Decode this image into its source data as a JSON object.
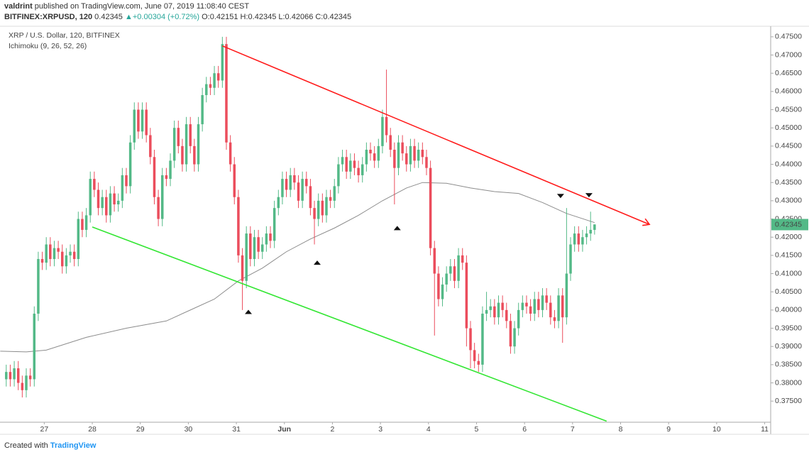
{
  "header": {
    "author": "valdrint",
    "published": "published on TradingView.com, June 07, 2019 11:08:40 CEST",
    "symbol": "BITFINEX:XRPUSD, 120",
    "last": "0.42345",
    "change": "▲+0.00304 (+0.72%)",
    "ohlc": "O:0.42151 H:0.42345 L:0.42066 C:0.42345"
  },
  "chart_data": {
    "type": "candlestick",
    "title": "XRP / U.S. Dollar, 120, BITFINEX",
    "indicator": "Ichimoku (9, 26, 52, 26)",
    "up_color": "#53b987",
    "down_color": "#eb4d5c",
    "open": [
      0.381,
      0.383,
      0.381,
      0.384,
      0.38,
      0.378,
      0.382,
      0.381,
      0.399,
      0.414,
      0.413,
      0.418,
      0.414,
      0.417,
      0.416,
      0.412,
      0.415,
      0.416,
      0.414,
      0.425,
      0.422,
      0.426,
      0.436,
      0.433,
      0.428,
      0.431,
      0.426,
      0.432,
      0.429,
      0.43,
      0.437,
      0.434,
      0.446,
      0.455,
      0.449,
      0.455,
      0.448,
      0.442,
      0.431,
      0.425,
      0.437,
      0.436,
      0.441,
      0.45,
      0.445,
      0.44,
      0.451,
      0.445,
      0.44,
      0.451,
      0.459,
      0.462,
      0.461,
      0.465,
      0.463,
      0.473,
      0.446,
      0.44,
      0.431,
      0.415,
      0.408,
      0.421,
      0.414,
      0.42,
      0.416,
      0.418,
      0.421,
      0.419,
      0.428,
      0.431,
      0.436,
      0.433,
      0.437,
      0.435,
      0.43,
      0.436,
      0.434,
      0.428,
      0.425,
      0.43,
      0.426,
      0.431,
      0.43,
      0.434,
      0.44,
      0.442,
      0.438,
      0.441,
      0.439,
      0.437,
      0.44,
      0.444,
      0.443,
      0.441,
      0.445,
      0.453,
      0.448,
      0.444,
      0.439,
      0.446,
      0.443,
      0.44,
      0.445,
      0.441,
      0.444,
      0.442,
      0.439,
      0.417,
      0.41,
      0.403,
      0.407,
      0.41,
      0.412,
      0.408,
      0.415,
      0.413,
      0.395,
      0.389,
      0.386,
      0.385,
      0.399,
      0.4,
      0.401,
      0.398,
      0.402,
      0.4,
      0.397,
      0.39,
      0.395,
      0.4,
      0.402,
      0.401,
      0.399,
      0.403,
      0.4,
      0.404,
      0.402,
      0.398,
      0.397,
      0.404,
      0.398,
      0.41,
      0.418,
      0.421,
      0.418,
      0.42,
      0.421,
      0.422
    ],
    "high": [
      0.385,
      0.385,
      0.386,
      0.386,
      0.382,
      0.384,
      0.384,
      0.401,
      0.416,
      0.416,
      0.42,
      0.42,
      0.419,
      0.419,
      0.418,
      0.417,
      0.418,
      0.418,
      0.427,
      0.427,
      0.428,
      0.438,
      0.438,
      0.435,
      0.433,
      0.433,
      0.434,
      0.434,
      0.432,
      0.439,
      0.439,
      0.448,
      0.457,
      0.457,
      0.457,
      0.457,
      0.45,
      0.444,
      0.433,
      0.439,
      0.439,
      0.443,
      0.452,
      0.452,
      0.447,
      0.453,
      0.453,
      0.447,
      0.453,
      0.461,
      0.464,
      0.464,
      0.467,
      0.467,
      0.475,
      0.475,
      0.448,
      0.442,
      0.433,
      0.417,
      0.423,
      0.423,
      0.422,
      0.422,
      0.42,
      0.423,
      0.423,
      0.43,
      0.433,
      0.438,
      0.438,
      0.439,
      0.439,
      0.437,
      0.438,
      0.438,
      0.436,
      0.43,
      0.432,
      0.432,
      0.433,
      0.433,
      0.436,
      0.442,
      0.444,
      0.444,
      0.443,
      0.443,
      0.441,
      0.442,
      0.446,
      0.446,
      0.445,
      0.447,
      0.455,
      0.466,
      0.45,
      0.446,
      0.448,
      0.448,
      0.445,
      0.447,
      0.447,
      0.446,
      0.446,
      0.444,
      0.441,
      0.419,
      0.412,
      0.409,
      0.412,
      0.414,
      0.414,
      0.417,
      0.417,
      0.415,
      0.397,
      0.391,
      0.388,
      0.401,
      0.405,
      0.403,
      0.403,
      0.404,
      0.404,
      0.402,
      0.399,
      0.397,
      0.402,
      0.404,
      0.404,
      0.403,
      0.405,
      0.405,
      0.406,
      0.406,
      0.404,
      0.4,
      0.406,
      0.406,
      0.428,
      0.42,
      0.423,
      0.423,
      0.422,
      0.423,
      0.427,
      0.4235
    ],
    "low": [
      0.379,
      0.379,
      0.379,
      0.378,
      0.376,
      0.376,
      0.379,
      0.379,
      0.397,
      0.411,
      0.411,
      0.412,
      0.412,
      0.414,
      0.41,
      0.41,
      0.413,
      0.412,
      0.412,
      0.42,
      0.42,
      0.424,
      0.431,
      0.426,
      0.426,
      0.424,
      0.424,
      0.427,
      0.427,
      0.428,
      0.432,
      0.432,
      0.444,
      0.447,
      0.447,
      0.446,
      0.44,
      0.429,
      0.423,
      0.423,
      0.434,
      0.434,
      0.439,
      0.443,
      0.438,
      0.438,
      0.443,
      0.438,
      0.438,
      0.449,
      0.457,
      0.459,
      0.459,
      0.461,
      0.461,
      0.444,
      0.438,
      0.429,
      0.413,
      0.4,
      0.406,
      0.412,
      0.412,
      0.414,
      0.414,
      0.416,
      0.417,
      0.417,
      0.426,
      0.429,
      0.431,
      0.431,
      0.433,
      0.428,
      0.428,
      0.432,
      0.426,
      0.418,
      0.423,
      0.424,
      0.424,
      0.428,
      0.428,
      0.432,
      0.438,
      0.436,
      0.436,
      0.437,
      0.435,
      0.435,
      0.438,
      0.441,
      0.439,
      0.439,
      0.443,
      0.446,
      0.442,
      0.429,
      0.437,
      0.441,
      0.438,
      0.438,
      0.439,
      0.439,
      0.44,
      0.437,
      0.415,
      0.393,
      0.401,
      0.401,
      0.405,
      0.408,
      0.406,
      0.406,
      0.411,
      0.39,
      0.384,
      0.384,
      0.383,
      0.383,
      0.397,
      0.398,
      0.396,
      0.396,
      0.398,
      0.395,
      0.388,
      0.388,
      0.393,
      0.398,
      0.399,
      0.397,
      0.397,
      0.398,
      0.398,
      0.4,
      0.396,
      0.395,
      0.395,
      0.391,
      0.396,
      0.408,
      0.416,
      0.416,
      0.416,
      0.418,
      0.419,
      0.4207
    ],
    "close": [
      0.383,
      0.381,
      0.384,
      0.38,
      0.378,
      0.382,
      0.381,
      0.399,
      0.414,
      0.413,
      0.418,
      0.414,
      0.417,
      0.416,
      0.412,
      0.415,
      0.416,
      0.414,
      0.425,
      0.422,
      0.426,
      0.436,
      0.433,
      0.428,
      0.431,
      0.426,
      0.432,
      0.429,
      0.43,
      0.437,
      0.434,
      0.446,
      0.455,
      0.449,
      0.455,
      0.448,
      0.442,
      0.431,
      0.425,
      0.437,
      0.436,
      0.441,
      0.45,
      0.445,
      0.44,
      0.451,
      0.445,
      0.44,
      0.451,
      0.459,
      0.462,
      0.461,
      0.465,
      0.463,
      0.473,
      0.446,
      0.44,
      0.431,
      0.415,
      0.408,
      0.421,
      0.414,
      0.42,
      0.416,
      0.418,
      0.421,
      0.419,
      0.428,
      0.431,
      0.436,
      0.433,
      0.437,
      0.435,
      0.43,
      0.436,
      0.434,
      0.428,
      0.425,
      0.43,
      0.426,
      0.431,
      0.43,
      0.434,
      0.44,
      0.442,
      0.438,
      0.441,
      0.439,
      0.437,
      0.44,
      0.444,
      0.443,
      0.441,
      0.445,
      0.453,
      0.448,
      0.444,
      0.439,
      0.446,
      0.443,
      0.44,
      0.445,
      0.441,
      0.444,
      0.442,
      0.439,
      0.417,
      0.41,
      0.403,
      0.407,
      0.41,
      0.412,
      0.408,
      0.415,
      0.413,
      0.395,
      0.389,
      0.386,
      0.385,
      0.399,
      0.4,
      0.401,
      0.398,
      0.402,
      0.4,
      0.397,
      0.39,
      0.395,
      0.4,
      0.402,
      0.401,
      0.399,
      0.403,
      0.4,
      0.404,
      0.402,
      0.398,
      0.397,
      0.404,
      0.398,
      0.41,
      0.418,
      0.421,
      0.418,
      0.42,
      0.421,
      0.422,
      0.4235
    ],
    "xlim": [
      -1.56,
      191
    ],
    "xticks": [
      {
        "value": 9.5,
        "label": "27"
      },
      {
        "value": 21.5,
        "label": "28"
      },
      {
        "value": 33.5,
        "label": "29"
      },
      {
        "value": 45.5,
        "label": "30"
      },
      {
        "value": 57.5,
        "label": "31"
      },
      {
        "value": 69.5,
        "label": "Jun"
      },
      {
        "value": 81.5,
        "label": "2"
      },
      {
        "value": 93.5,
        "label": "3"
      },
      {
        "value": 105.5,
        "label": "4"
      },
      {
        "value": 117.5,
        "label": "5"
      },
      {
        "value": 129.5,
        "label": "6"
      },
      {
        "value": 141.5,
        "label": "7"
      },
      {
        "value": 153.5,
        "label": "8"
      },
      {
        "value": 165.5,
        "label": "9"
      },
      {
        "value": 177.5,
        "label": "10"
      },
      {
        "value": 189.5,
        "label": "11"
      }
    ],
    "ylim": [
      0.3692,
      0.4777
    ],
    "yticks": [
      {
        "value": 0.375,
        "label": "0.37500"
      },
      {
        "value": 0.38,
        "label": "0.38000"
      },
      {
        "value": 0.385,
        "label": "0.38500"
      },
      {
        "value": 0.39,
        "label": "0.39000"
      },
      {
        "value": 0.395,
        "label": "0.39500"
      },
      {
        "value": 0.4,
        "label": "0.40000"
      },
      {
        "value": 0.405,
        "label": "0.40500"
      },
      {
        "value": 0.41,
        "label": "0.41000"
      },
      {
        "value": 0.415,
        "label": "0.41500"
      },
      {
        "value": 0.42,
        "label": "0.42000"
      },
      {
        "value": 0.425,
        "label": "0.42500"
      },
      {
        "value": 0.43,
        "label": "0.43000"
      },
      {
        "value": 0.435,
        "label": "0.43500"
      },
      {
        "value": 0.44,
        "label": "0.44000"
      },
      {
        "value": 0.445,
        "label": "0.44500"
      },
      {
        "value": 0.45,
        "label": "0.45000"
      },
      {
        "value": 0.455,
        "label": "0.45500"
      },
      {
        "value": 0.46,
        "label": "0.46000"
      },
      {
        "value": 0.465,
        "label": "0.46500"
      },
      {
        "value": 0.47,
        "label": "0.47000"
      },
      {
        "value": 0.475,
        "label": "0.47500"
      }
    ],
    "last_price": {
      "value": 0.42345,
      "label": "0.42345"
    },
    "overlay": {
      "color": "#8c8c8c",
      "x": [
        -1.5,
        5,
        10,
        20,
        30,
        40,
        46,
        52,
        58,
        64,
        70,
        76,
        82,
        88,
        94,
        100,
        104,
        110,
        116,
        122,
        128,
        134,
        140,
        147
      ],
      "values": [
        0.3887,
        0.3885,
        0.389,
        0.3925,
        0.395,
        0.397,
        0.4,
        0.403,
        0.408,
        0.4115,
        0.416,
        0.4195,
        0.4225,
        0.426,
        0.43,
        0.4335,
        0.435,
        0.4348,
        0.4335,
        0.4325,
        0.432,
        0.4295,
        0.4265,
        0.424
      ]
    },
    "trendlines": [
      {
        "color": "#ff1a1a",
        "x": [
          54,
          160.7
        ],
        "values": [
          0.4725,
          0.4235
        ]
      },
      {
        "color": "#33e633",
        "x": [
          21.5,
          150
        ],
        "values": [
          0.4228,
          0.3695
        ]
      }
    ],
    "markers": [
      {
        "direction": "down",
        "x": 138.5,
        "value": 0.4313
      },
      {
        "direction": "down",
        "x": 145.6,
        "value": 0.4315
      },
      {
        "direction": "up",
        "x": 60.5,
        "value": 0.3995
      },
      {
        "direction": "up",
        "x": 77.7,
        "value": 0.413
      },
      {
        "direction": "up",
        "x": 97.7,
        "value": 0.4225
      }
    ]
  },
  "footer": {
    "created": "Created with",
    "brand": "TradingView"
  }
}
